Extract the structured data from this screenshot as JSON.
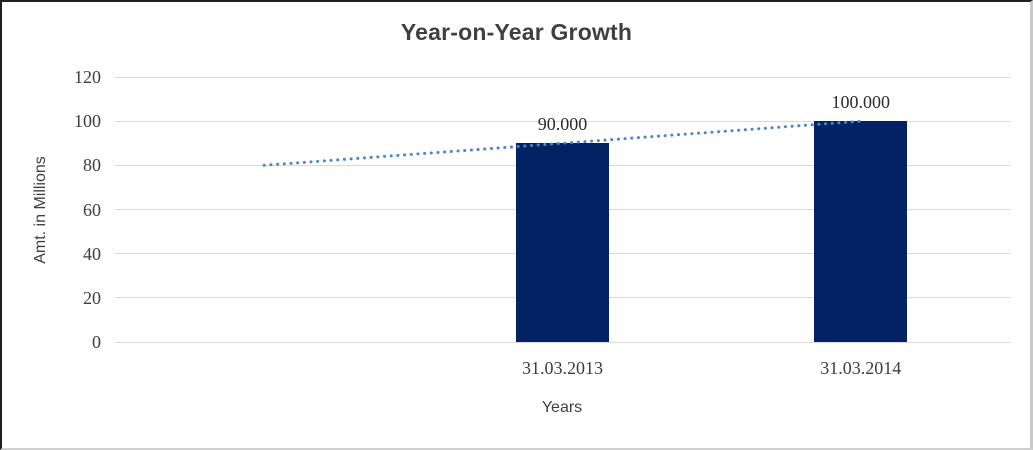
{
  "frame": {
    "background": "#ffffff",
    "border_top_color": "#1f1f1f",
    "border_left_color": "#1f1f1f",
    "border_right_color": "#c9c9c9",
    "border_bottom_color": "#cfcfcf"
  },
  "chart_data": {
    "type": "bar",
    "title": "Year-on-Year Growth",
    "xlabel": "Years",
    "ylabel": "Amt. in Millions",
    "ylim": [
      0,
      120
    ],
    "yticks": [
      0,
      20,
      40,
      60,
      80,
      100,
      120
    ],
    "ytick_step": 20,
    "grid": true,
    "legend": "none",
    "categories": [
      "",
      "31.03.2013",
      "31.03.2014"
    ],
    "values": [
      null,
      90,
      100
    ],
    "data_labels": [
      "",
      "90.000",
      "100.000"
    ],
    "bar_color": "#032264",
    "trendline": {
      "style": "dotted",
      "color": "#4a86c8",
      "points": [
        {
          "slot": 0,
          "value": 80
        },
        {
          "slot": 2,
          "value": 100
        }
      ]
    },
    "colors": {
      "grid": "#d9d9d9",
      "title_text": "#404040",
      "axis_title_text": "#404040",
      "tick_text": "#3d3d3d",
      "data_label_text": "#2b2b2b"
    }
  }
}
